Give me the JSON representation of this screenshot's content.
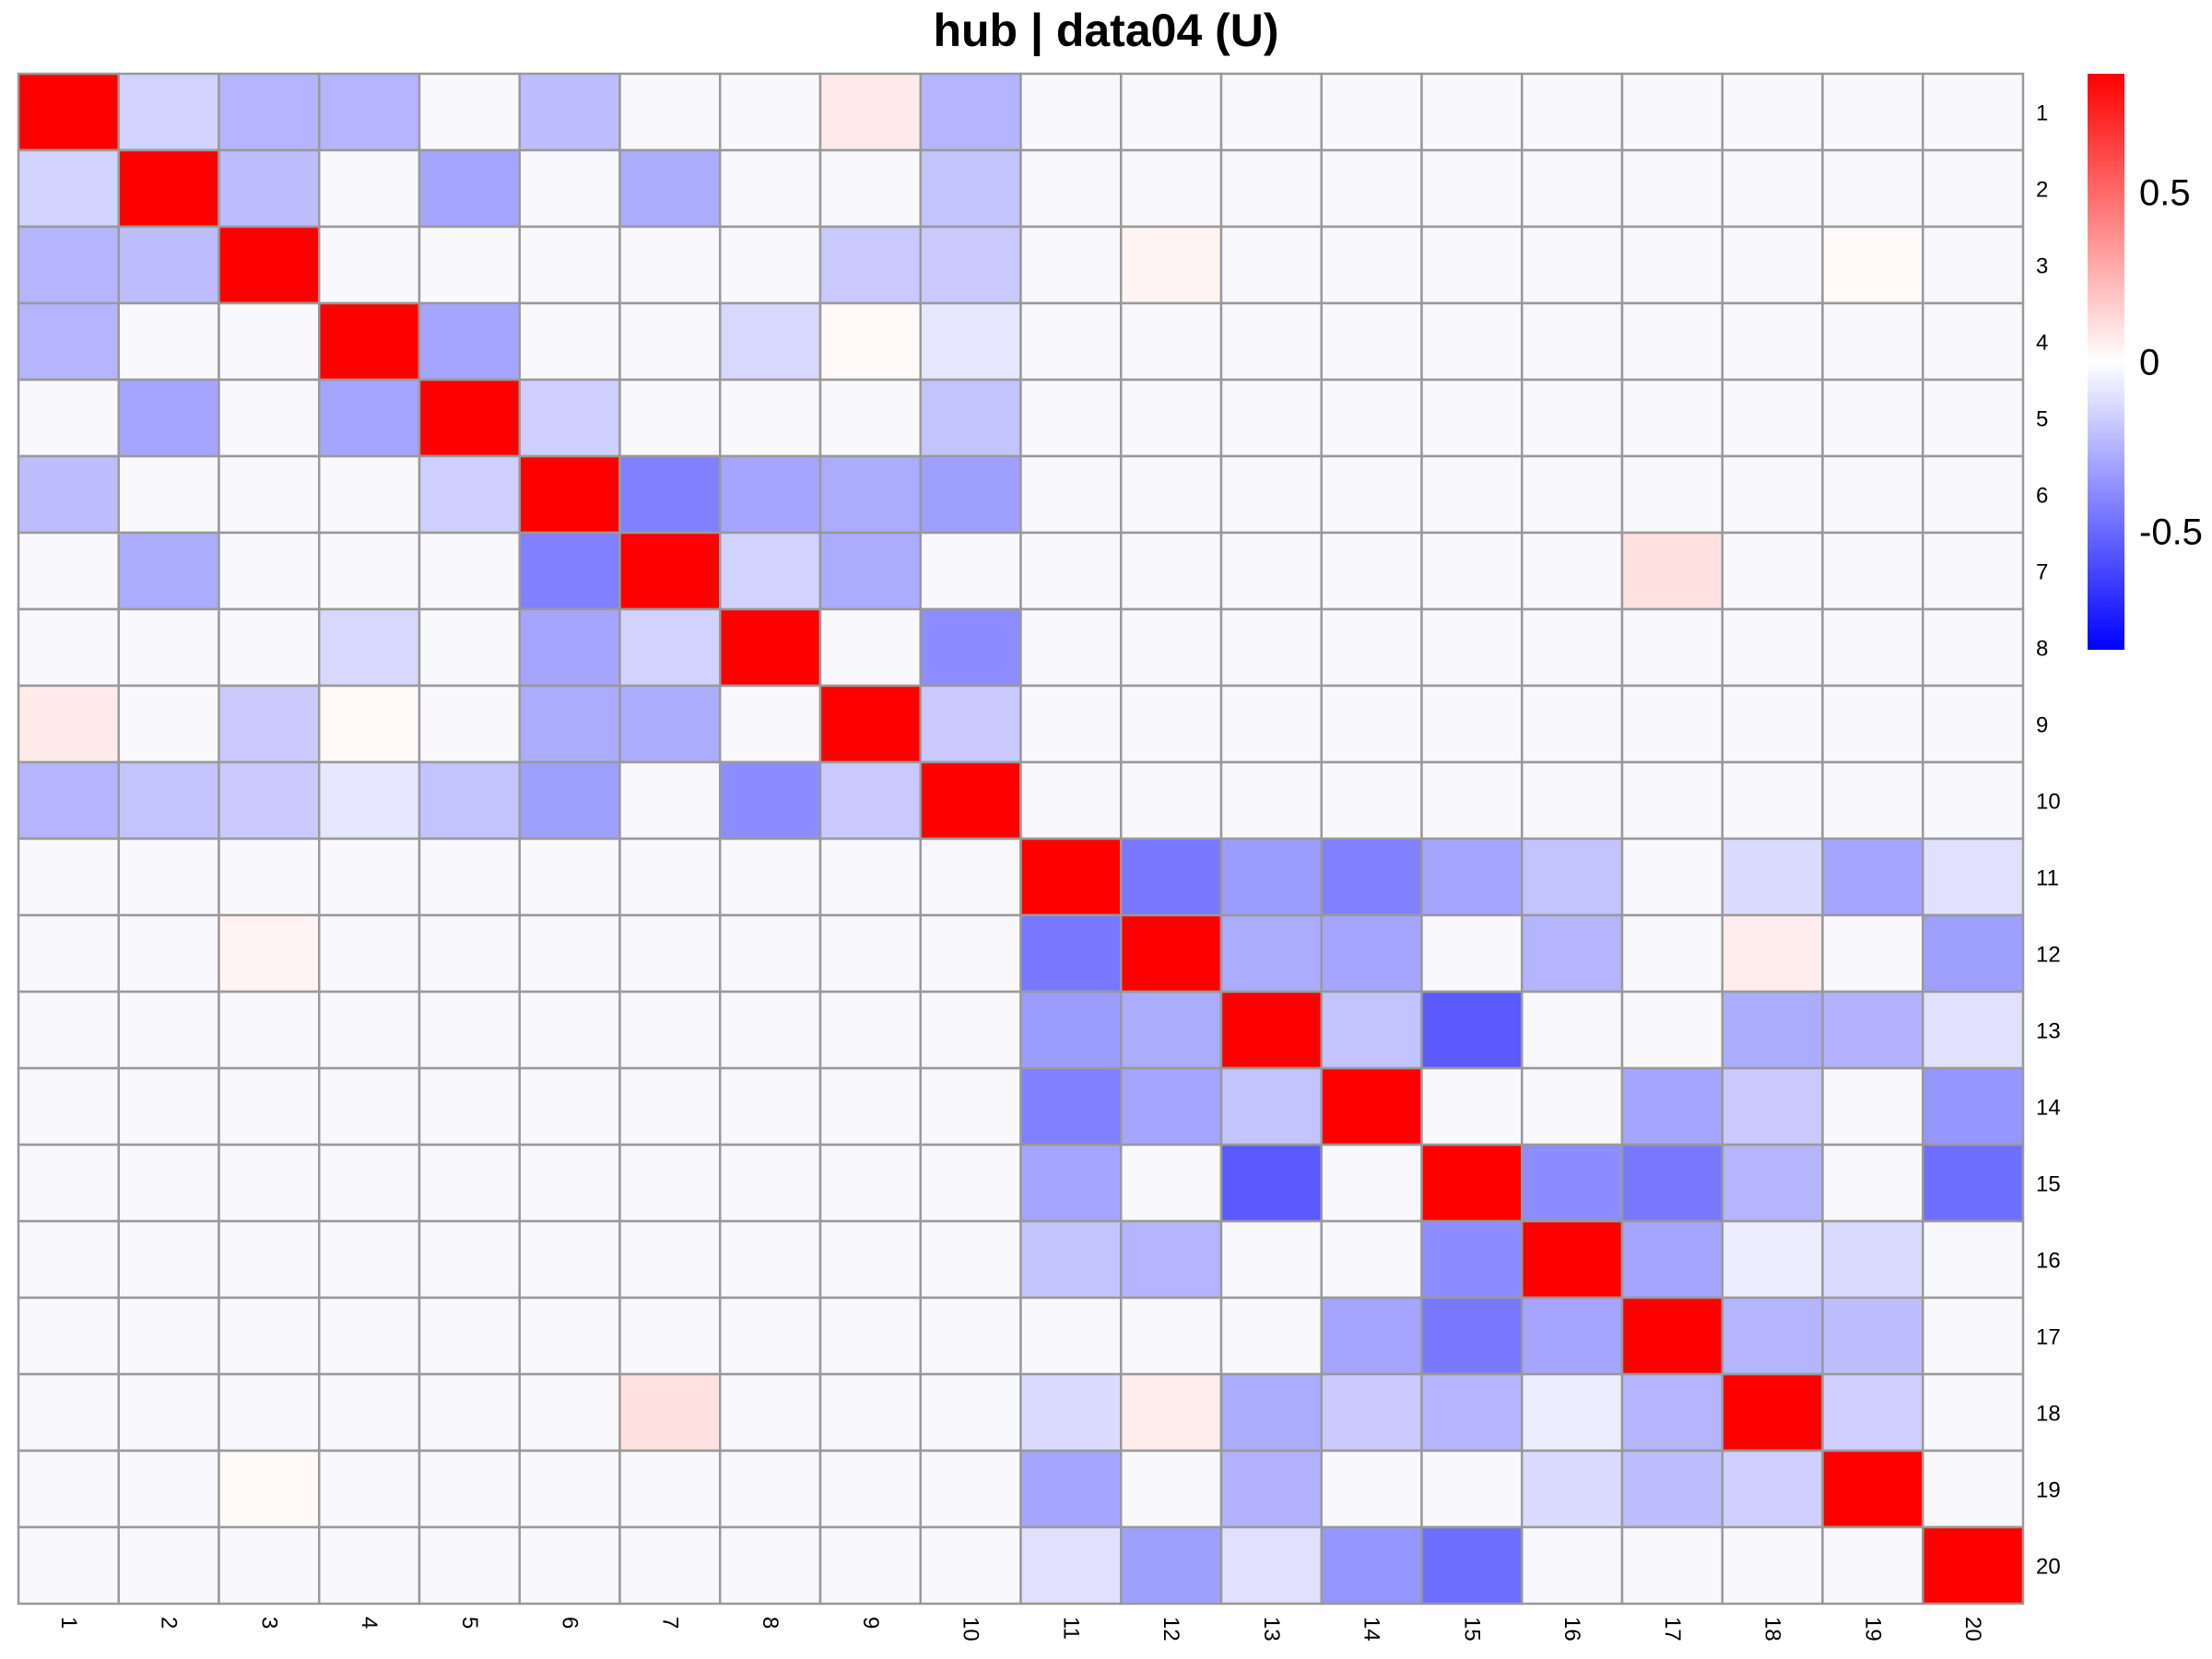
{
  "chart_data": {
    "type": "heatmap",
    "title": "hub | data04 (U)",
    "rows": [
      "1",
      "2",
      "3",
      "4",
      "5",
      "6",
      "7",
      "8",
      "9",
      "10",
      "11",
      "12",
      "13",
      "14",
      "15",
      "16",
      "17",
      "18",
      "19",
      "20"
    ],
    "cols": [
      "1",
      "2",
      "3",
      "4",
      "5",
      "6",
      "7",
      "8",
      "9",
      "10",
      "11",
      "12",
      "13",
      "14",
      "15",
      "16",
      "17",
      "18",
      "19",
      "20"
    ],
    "values": [
      [
        1,
        -0.15,
        -0.25,
        -0.25,
        0,
        -0.22,
        0,
        0,
        0.07,
        -0.25,
        0,
        0,
        0,
        0,
        0,
        0,
        0,
        0,
        0,
        0
      ],
      [
        -0.15,
        1,
        -0.22,
        0,
        -0.3,
        0,
        -0.28,
        0,
        0,
        -0.2,
        0,
        0,
        0,
        0,
        0,
        0,
        0,
        0,
        0,
        0
      ],
      [
        -0.25,
        -0.22,
        1,
        0,
        0,
        0,
        0,
        0,
        -0.18,
        -0.18,
        0,
        0.04,
        0,
        0,
        0,
        0,
        0,
        0,
        0.02,
        0
      ],
      [
        -0.25,
        0,
        0,
        1,
        -0.3,
        0,
        0,
        -0.13,
        0.02,
        -0.08,
        0,
        0,
        0,
        0,
        0,
        0,
        0,
        0,
        0,
        0
      ],
      [
        0,
        -0.3,
        0,
        -0.3,
        1,
        -0.16,
        0,
        0,
        0,
        -0.2,
        0,
        0,
        0,
        0,
        0,
        0,
        0,
        0,
        0,
        0
      ],
      [
        -0.22,
        0,
        0,
        0,
        -0.16,
        1,
        -0.42,
        -0.3,
        -0.28,
        -0.32,
        0,
        0,
        0,
        0,
        0,
        0,
        0,
        0,
        0,
        0
      ],
      [
        0,
        -0.28,
        0,
        0,
        0,
        -0.42,
        1,
        -0.15,
        -0.28,
        0,
        0,
        0,
        0,
        0,
        0,
        0,
        0.1,
        0,
        0,
        0
      ],
      [
        0,
        0,
        0,
        -0.13,
        0,
        -0.3,
        -0.15,
        1,
        0,
        -0.38,
        0,
        0,
        0,
        0,
        0,
        0,
        0,
        0,
        0,
        0
      ],
      [
        0.07,
        0,
        -0.18,
        0.02,
        0,
        -0.28,
        -0.28,
        0,
        1,
        -0.18,
        0,
        0,
        0,
        0,
        0,
        0,
        0,
        0,
        0,
        0
      ],
      [
        -0.25,
        -0.2,
        -0.18,
        -0.08,
        -0.2,
        -0.32,
        0,
        -0.38,
        -0.18,
        1,
        0,
        0,
        0,
        0,
        0,
        0,
        0,
        0,
        0,
        0
      ],
      [
        0,
        0,
        0,
        0,
        0,
        0,
        0,
        0,
        0,
        0,
        1,
        -0.45,
        -0.33,
        -0.42,
        -0.3,
        -0.2,
        0,
        -0.12,
        -0.3,
        -0.1
      ],
      [
        0,
        0,
        0.04,
        0,
        0,
        0,
        0,
        0,
        0,
        0,
        -0.45,
        1,
        -0.28,
        -0.3,
        0,
        -0.25,
        0,
        0.06,
        0,
        -0.32
      ],
      [
        0,
        0,
        0,
        0,
        0,
        0,
        0,
        0,
        0,
        0,
        -0.33,
        -0.28,
        1,
        -0.2,
        -0.55,
        0,
        0,
        -0.28,
        -0.26,
        -0.1
      ],
      [
        0,
        0,
        0,
        0,
        0,
        0,
        0,
        0,
        0,
        0,
        -0.42,
        -0.3,
        -0.2,
        1,
        0,
        0,
        -0.3,
        -0.18,
        0,
        -0.35
      ],
      [
        0,
        0,
        0,
        0,
        0,
        0,
        0,
        0,
        0,
        0,
        -0.3,
        0,
        -0.55,
        0,
        1,
        -0.38,
        -0.45,
        -0.25,
        0,
        -0.48
      ],
      [
        0,
        0,
        0,
        0,
        0,
        0,
        0,
        0,
        0,
        0,
        -0.2,
        -0.25,
        0,
        0,
        -0.38,
        1,
        -0.3,
        -0.06,
        -0.12,
        0
      ],
      [
        0,
        0,
        0,
        0,
        0,
        0,
        0,
        0,
        0,
        0,
        0,
        0,
        0,
        -0.3,
        -0.45,
        -0.3,
        1,
        -0.25,
        -0.22,
        0
      ],
      [
        0,
        0,
        0,
        0,
        0,
        0,
        0.1,
        0,
        0,
        0,
        -0.12,
        0.06,
        -0.28,
        -0.18,
        -0.25,
        -0.06,
        -0.25,
        1,
        -0.16,
        0
      ],
      [
        0,
        0,
        0.02,
        0,
        0,
        0,
        0,
        0,
        0,
        0,
        -0.3,
        0,
        -0.26,
        0,
        0,
        -0.12,
        -0.22,
        -0.16,
        1,
        0
      ],
      [
        0,
        0,
        0,
        0,
        0,
        0,
        0,
        0,
        0,
        0,
        -0.1,
        -0.32,
        -0.1,
        -0.35,
        -0.48,
        0,
        0,
        0,
        0,
        1
      ]
    ],
    "color_scale": {
      "low": "#0000ff",
      "mid": "#ffffff",
      "high": "#ff0000",
      "range": [
        -0.85,
        0.85
      ]
    },
    "colorbar_ticks": [
      {
        "value": 0.5,
        "label": "0.5"
      },
      {
        "value": 0,
        "label": "0"
      },
      {
        "value": -0.5,
        "label": "-0.5"
      }
    ],
    "cell_border_color": "#999999",
    "legend_placement": "right"
  }
}
